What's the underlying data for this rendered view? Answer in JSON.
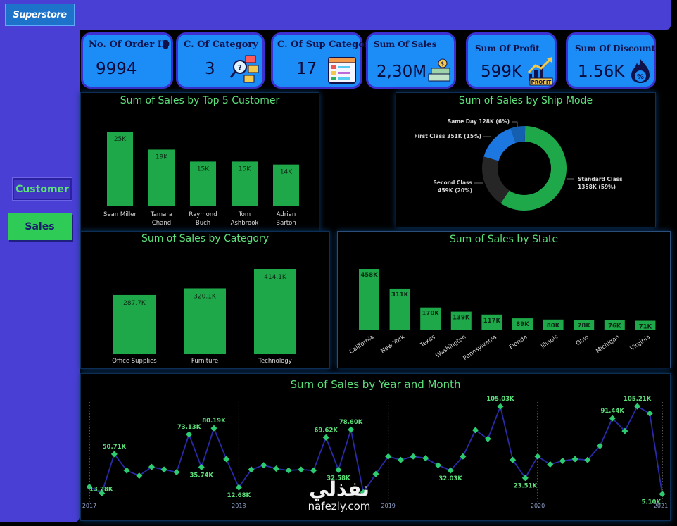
{
  "app": {
    "logo": "Superstore"
  },
  "nav": {
    "customer": "Customer",
    "sales": "Sales"
  },
  "kpis": [
    {
      "title": "No. Of Order  ID",
      "value": "9994"
    },
    {
      "title": "C. Of Category",
      "value": "3"
    },
    {
      "title": "C. Of Sup Category",
      "value": "17"
    },
    {
      "title": "Sum Of Sales",
      "value": "2,30M"
    },
    {
      "title": "Sum Of Profit",
      "value": "599K",
      "icon_label": "PROFIT"
    },
    {
      "title": "Sum Of Discount",
      "value": "1.56K"
    }
  ],
  "colors": {
    "bar": "#1fa84a",
    "accent": "#5ce07a",
    "kpi": "#1c8cf6",
    "nav": "#4a3fd4",
    "line": "#2a2aa8",
    "marker": "#2ecc71"
  },
  "chart_data": [
    {
      "type": "bar",
      "title": "Sum of Sales by Top 5 Customer",
      "categories": [
        "Sean Miller",
        "Tamara Chand",
        "Raymond Buch",
        "Tom Ashbrook",
        "Adrian Barton"
      ],
      "category_lines": [
        [
          "Sean Miller"
        ],
        [
          "Tamara",
          "Chand"
        ],
        [
          "Raymond",
          "Buch"
        ],
        [
          "Tom",
          "Ashbrook"
        ],
        [
          "Adrian",
          "Barton"
        ]
      ],
      "values": [
        25,
        19,
        15,
        15,
        14
      ],
      "labels": [
        "25K",
        "19K",
        "15K",
        "15K",
        "14K"
      ],
      "ylim": [
        0,
        25
      ]
    },
    {
      "type": "pie",
      "title": "Sum of Sales by Ship Mode",
      "slices": [
        {
          "name": "Standard Class",
          "value": 1358,
          "label": "Standard Class",
          "label2": "1358K (59%)",
          "color": "#1fa84a"
        },
        {
          "name": "Second Class",
          "value": 459,
          "label": "Second Class",
          "label2": "459K (20%)",
          "color": "#262626"
        },
        {
          "name": "First Class",
          "value": 351,
          "label": "First Class 351K (15%)",
          "color": "#1c78e0"
        },
        {
          "name": "Same Day",
          "value": 128,
          "label": "Same Day 128K (6%)",
          "color": "#155fb0"
        }
      ]
    },
    {
      "type": "bar",
      "title": "Sum of Sales by Category",
      "categories": [
        "Office Supplies",
        "Furniture",
        "Technology"
      ],
      "values": [
        287.7,
        320.1,
        414.1
      ],
      "labels": [
        "287.7K",
        "320.1K",
        "414.1K"
      ],
      "ylim": [
        0,
        414.1
      ]
    },
    {
      "type": "bar",
      "title": "Sum of Sales by State",
      "categories": [
        "California",
        "New York",
        "Texas",
        "Washington",
        "Pennsylvania",
        "Florida",
        "Illinois",
        "Ohio",
        "Michigan",
        "Virginia"
      ],
      "values": [
        458,
        311,
        170,
        139,
        117,
        89,
        80,
        78,
        76,
        71
      ],
      "labels": [
        "458K",
        "311K",
        "170K",
        "139K",
        "117K",
        "89K",
        "80K",
        "78K",
        "76K",
        "71K"
      ],
      "ylim": [
        0,
        458
      ]
    },
    {
      "type": "line",
      "title": "Sum of Sales by Year and Month",
      "years": [
        "2017",
        "2018",
        "2019",
        "2020",
        "2021"
      ],
      "values": [
        13.28,
        6,
        50.71,
        32,
        26,
        36,
        33,
        30,
        73.13,
        35.74,
        80.19,
        45,
        12.68,
        33,
        38,
        34,
        32,
        33,
        32,
        69.62,
        32.58,
        78.6,
        7,
        28,
        48,
        44,
        48,
        46,
        38,
        32.03,
        48,
        78,
        68,
        105.03,
        44,
        23.51,
        48,
        39,
        43,
        45,
        44,
        60,
        91.44,
        77,
        105.21,
        97,
        5.1
      ],
      "point_labels": [
        {
          "i": 0,
          "text": "13.28K"
        },
        {
          "i": 2,
          "text": "50.71K"
        },
        {
          "i": 8,
          "text": "73.13K"
        },
        {
          "i": 9,
          "text": "35.74K"
        },
        {
          "i": 10,
          "text": "80.19K"
        },
        {
          "i": 12,
          "text": "12.68K"
        },
        {
          "i": 19,
          "text": "69.62K"
        },
        {
          "i": 20,
          "text": "32.58K"
        },
        {
          "i": 21,
          "text": "78.60K"
        },
        {
          "i": 29,
          "text": "32.03K"
        },
        {
          "i": 33,
          "text": "105.03K"
        },
        {
          "i": 35,
          "text": "23.51K"
        },
        {
          "i": 42,
          "text": "91.44K"
        },
        {
          "i": 44,
          "text": "105.21K"
        },
        {
          "i": 46,
          "text": "5.10K"
        }
      ],
      "ylim": [
        0,
        110
      ]
    }
  ],
  "watermark": {
    "arabic": "نفذلي",
    "latin": "nafezly.com"
  }
}
